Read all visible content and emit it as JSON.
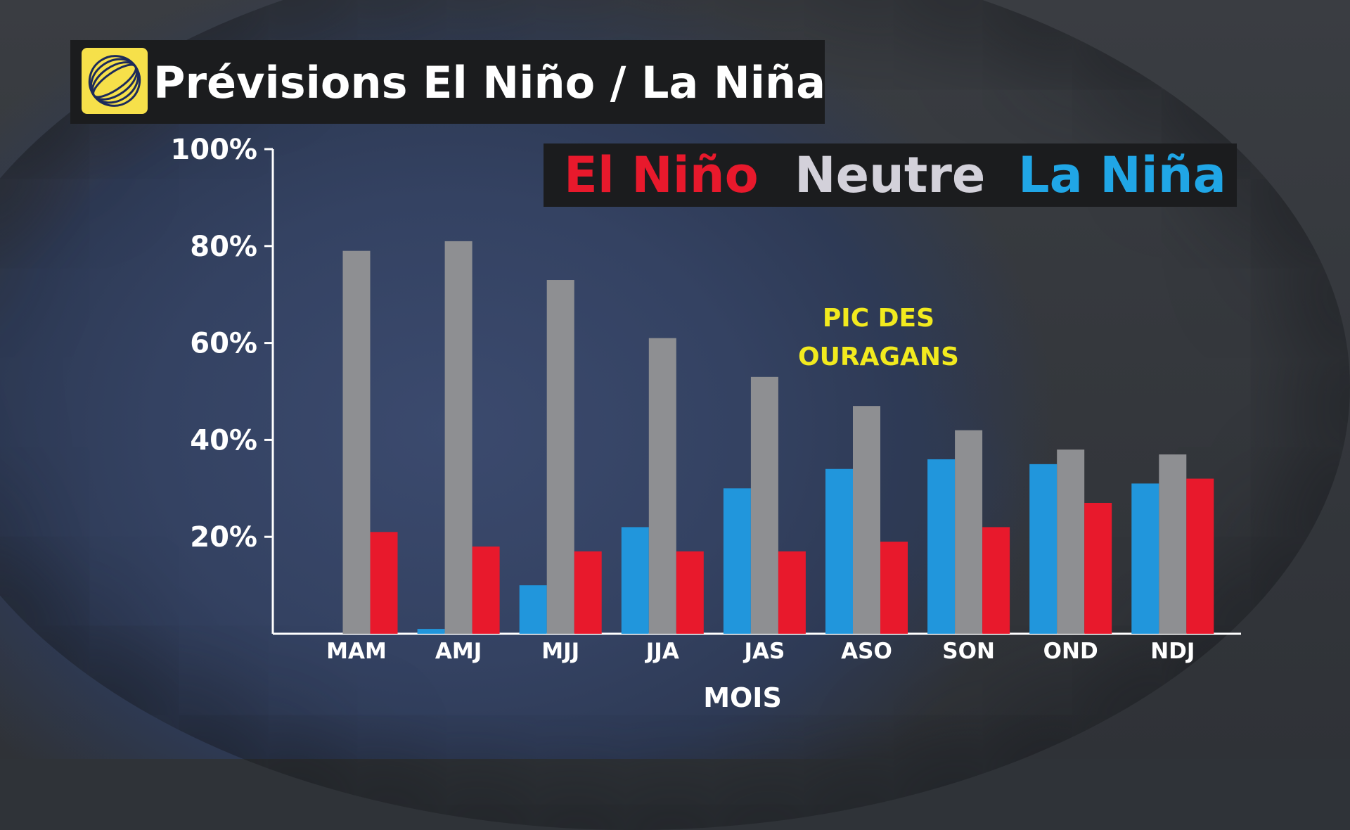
{
  "header": {
    "title": "Prévisions El Niño / La Niña",
    "logo_icon": "weather-network-globe-logo"
  },
  "colors": {
    "el_nino": "#e8192c",
    "neutre": "#8e8f92",
    "la_nina": "#2196dc",
    "annotation": "#f2ea1e",
    "legend_neutre_text": "#d3d1da",
    "legend_la_nina_text": "#20a6e6"
  },
  "chart_data": {
    "type": "bar",
    "title": "",
    "xlabel": "MOIS",
    "ylabel": "",
    "ylim": [
      0,
      100
    ],
    "yticks": [
      "20%",
      "40%",
      "60%",
      "80%",
      "100%"
    ],
    "ytick_values": [
      20,
      40,
      60,
      80,
      100
    ],
    "categories": [
      "MAM",
      "AMJ",
      "MJJ",
      "JJA",
      "JAS",
      "ASO",
      "SON",
      "OND",
      "NDJ"
    ],
    "legend_placement": "top-right",
    "legend": [
      "El Niño",
      "Neutre",
      "La Niña"
    ],
    "series": [
      {
        "name": "La Niña",
        "values": [
          0,
          1,
          10,
          22,
          30,
          34,
          36,
          35,
          31
        ]
      },
      {
        "name": "Neutre",
        "values": [
          79,
          81,
          73,
          61,
          53,
          47,
          42,
          38,
          37
        ]
      },
      {
        "name": "El Niño",
        "values": [
          21,
          18,
          17,
          17,
          17,
          19,
          22,
          27,
          32
        ]
      }
    ],
    "annotations": [
      {
        "text_lines": [
          "PIC DES",
          "OURAGANS"
        ],
        "near_category": "ASO"
      }
    ],
    "grid": false
  }
}
